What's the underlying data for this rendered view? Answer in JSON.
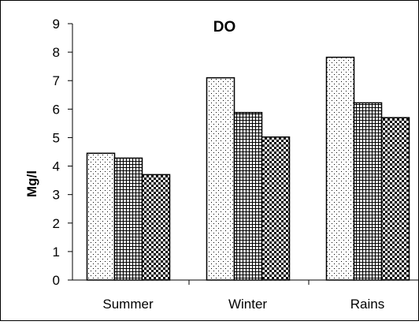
{
  "chart_data": {
    "type": "bar",
    "title": "DO",
    "xlabel": "",
    "ylabel": "Mg/l",
    "categories": [
      "Summer",
      "Winter",
      "Rains"
    ],
    "ylim": [
      0,
      9
    ],
    "yticks": [
      0,
      1,
      2,
      3,
      4,
      5,
      6,
      7,
      8,
      9
    ],
    "grid": false,
    "legend": "none",
    "series": [
      {
        "pattern": "dots",
        "values": [
          4.45,
          7.1,
          7.82
        ]
      },
      {
        "pattern": "grid",
        "values": [
          4.28,
          5.88,
          6.22
        ]
      },
      {
        "pattern": "checker",
        "values": [
          3.7,
          5.02,
          5.7
        ]
      }
    ]
  }
}
